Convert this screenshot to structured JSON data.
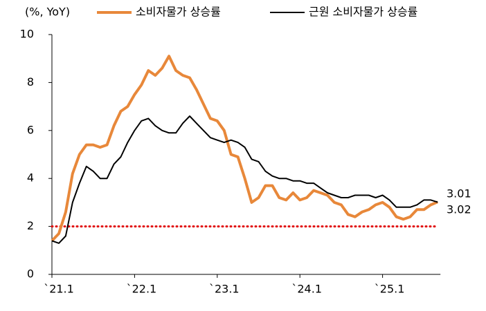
{
  "chart_data": {
    "type": "line",
    "y_label": "(%, YoY)",
    "categories": [
      "`21.1",
      null,
      null,
      null,
      null,
      null,
      null,
      null,
      null,
      null,
      null,
      null,
      "`22.1",
      null,
      null,
      null,
      null,
      null,
      null,
      null,
      null,
      null,
      null,
      null,
      "`23.1",
      null,
      null,
      null,
      null,
      null,
      null,
      null,
      null,
      null,
      null,
      null,
      "`24.1",
      null,
      null,
      null,
      null,
      null,
      null,
      null,
      null,
      null,
      null,
      null,
      "`25.1",
      null,
      null,
      null,
      null,
      null,
      null,
      null,
      null
    ],
    "series": [
      {
        "name": "소비자물가 상승률",
        "color": "#e8883a",
        "values": [
          1.4,
          1.7,
          2.6,
          4.2,
          5.0,
          5.4,
          5.4,
          5.3,
          5.4,
          6.2,
          6.8,
          7.0,
          7.5,
          7.9,
          8.5,
          8.3,
          8.6,
          9.1,
          8.5,
          8.3,
          8.2,
          7.7,
          7.1,
          6.5,
          6.4,
          6.0,
          5.0,
          4.9,
          4.0,
          3.0,
          3.2,
          3.7,
          3.7,
          3.2,
          3.1,
          3.4,
          3.1,
          3.2,
          3.5,
          3.4,
          3.3,
          3.0,
          2.9,
          2.5,
          2.4,
          2.6,
          2.7,
          2.9,
          3.0,
          2.8,
          2.4,
          2.3,
          2.4,
          2.7,
          2.7,
          2.9,
          3.02
        ],
        "value_labels": [
          null,
          null,
          null,
          null,
          null,
          null,
          null,
          null,
          null,
          null,
          null,
          null,
          null,
          null,
          null,
          null,
          null,
          null,
          null,
          null,
          null,
          null,
          null,
          null,
          null,
          null,
          null,
          null,
          null,
          null,
          null,
          null,
          null,
          null,
          null,
          null,
          null,
          null,
          null,
          null,
          null,
          null,
          null,
          null,
          null,
          null,
          null,
          null,
          null,
          null,
          null,
          null,
          null,
          null,
          null,
          null,
          "3.02"
        ]
      },
      {
        "name": "근원 소비자물가 상승률",
        "color": "#000000",
        "values": [
          1.4,
          1.3,
          1.6,
          3.0,
          3.8,
          4.5,
          4.3,
          4.0,
          4.0,
          4.6,
          4.9,
          5.5,
          6.0,
          6.4,
          6.5,
          6.2,
          6.0,
          5.9,
          5.9,
          6.3,
          6.6,
          6.3,
          6.0,
          5.7,
          5.6,
          5.5,
          5.6,
          5.5,
          5.3,
          4.8,
          4.7,
          4.3,
          4.1,
          4.0,
          4.0,
          3.9,
          3.9,
          3.8,
          3.8,
          3.6,
          3.4,
          3.3,
          3.2,
          3.2,
          3.3,
          3.3,
          3.3,
          3.2,
          3.3,
          3.1,
          2.8,
          2.8,
          2.8,
          2.9,
          3.1,
          3.1,
          3.01
        ],
        "value_labels": [
          null,
          null,
          null,
          null,
          null,
          null,
          null,
          null,
          null,
          null,
          null,
          null,
          null,
          null,
          null,
          null,
          null,
          null,
          null,
          null,
          null,
          null,
          null,
          null,
          null,
          null,
          null,
          null,
          null,
          null,
          null,
          null,
          null,
          null,
          null,
          null,
          null,
          null,
          null,
          null,
          null,
          null,
          null,
          null,
          null,
          null,
          null,
          null,
          null,
          null,
          null,
          null,
          null,
          null,
          null,
          null,
          "3.01"
        ]
      }
    ],
    "hline": {
      "value": 2,
      "color": "#e00000"
    },
    "ylim": [
      0,
      10
    ],
    "yticks": [
      0,
      2,
      4,
      6,
      8,
      10
    ]
  }
}
